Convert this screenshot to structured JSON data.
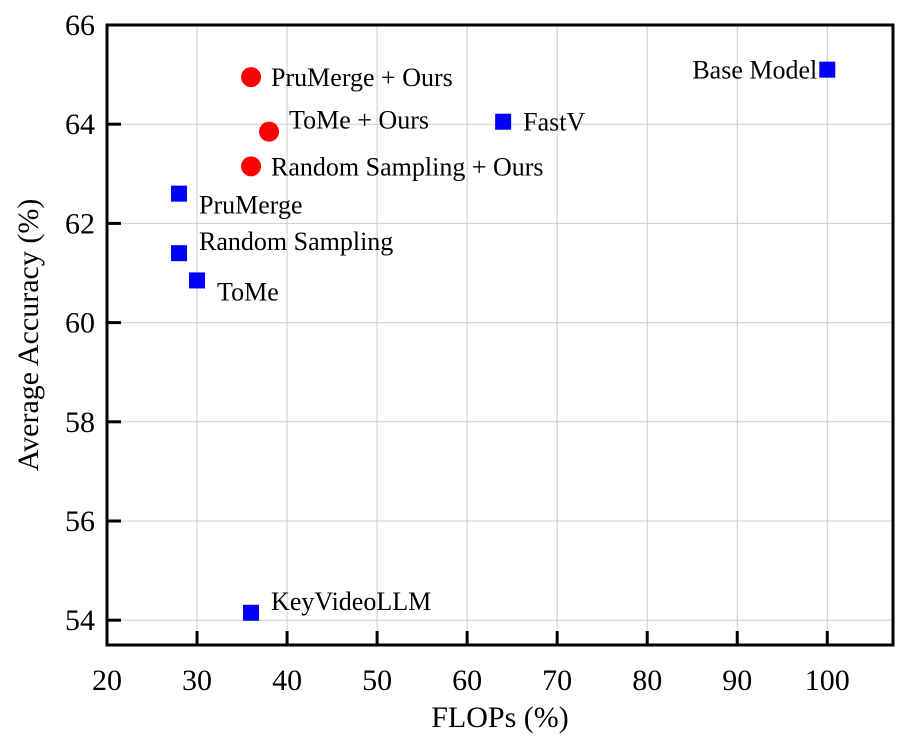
{
  "chart_data": {
    "type": "scatter",
    "title": "",
    "xlabel": "FLOPs (%)",
    "ylabel": "Average Accuracy (%)",
    "xlim": [
      20,
      107.3
    ],
    "ylim": [
      53.5,
      66
    ],
    "xticks": [
      20,
      30,
      40,
      50,
      60,
      70,
      80,
      90,
      100
    ],
    "yticks": [
      54,
      56,
      58,
      60,
      62,
      64,
      66
    ],
    "grid": true,
    "colors": {
      "baseline": "#0000ff",
      "ours": "#ff0000",
      "grid": "#cccccc",
      "axis": "#000000"
    },
    "points": [
      {
        "label": "Base Model",
        "x": 100,
        "y": 65.1,
        "group": "baseline",
        "marker": "square",
        "label_side": "left"
      },
      {
        "label": "FastV",
        "x": 64,
        "y": 64.05,
        "group": "baseline",
        "marker": "square",
        "label_side": "right"
      },
      {
        "label": "PruMerge",
        "x": 28,
        "y": 62.6,
        "group": "baseline",
        "marker": "square",
        "label_side": "right-below"
      },
      {
        "label": "Random Sampling",
        "x": 28,
        "y": 61.4,
        "group": "baseline",
        "marker": "square",
        "label_side": "right-above"
      },
      {
        "label": "ToMe",
        "x": 30,
        "y": 60.85,
        "group": "baseline",
        "marker": "square",
        "label_side": "right-below"
      },
      {
        "label": "KeyVideoLLM",
        "x": 36,
        "y": 54.15,
        "group": "baseline",
        "marker": "square",
        "label_side": "right-above"
      },
      {
        "label": "PruMerge + Ours",
        "x": 36,
        "y": 64.95,
        "group": "ours",
        "marker": "circle",
        "label_side": "right"
      },
      {
        "label": "ToMe + Ours",
        "x": 38,
        "y": 63.85,
        "group": "ours",
        "marker": "circle",
        "label_side": "right-above"
      },
      {
        "label": "Random Sampling + Ours",
        "x": 36,
        "y": 63.15,
        "group": "ours",
        "marker": "circle",
        "label_side": "right"
      }
    ]
  }
}
